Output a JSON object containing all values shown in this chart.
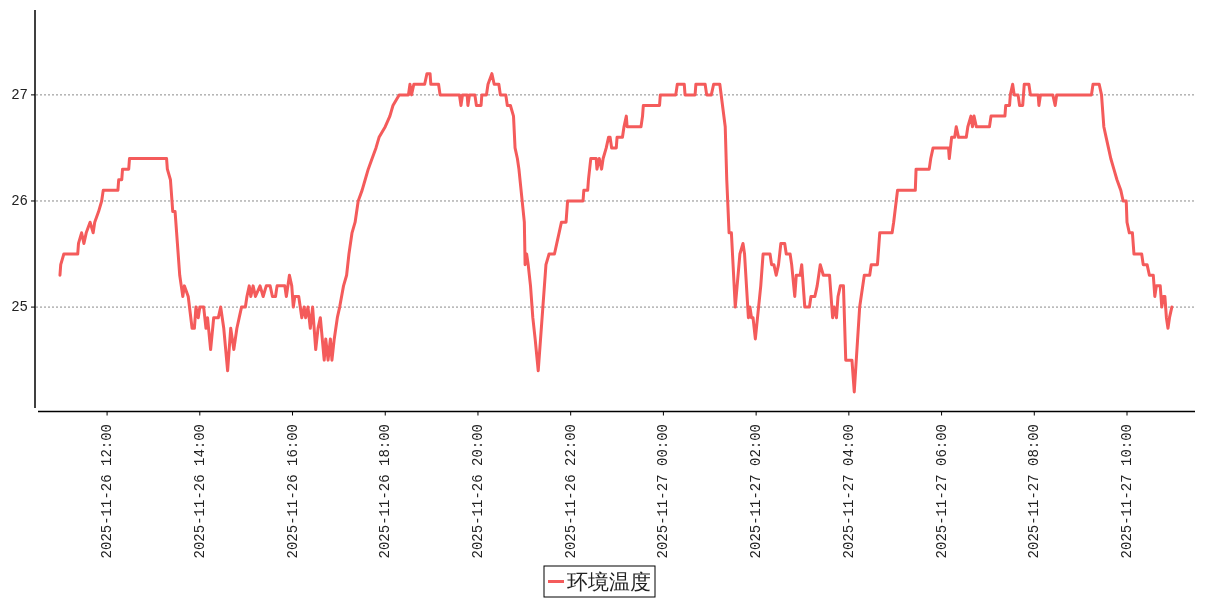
{
  "chart_data": {
    "type": "line",
    "series": [
      {
        "name": "环境温度",
        "color": "#f45b5b",
        "x": [
          "2025-11-26T10:59",
          "2025-11-26T11:00",
          "2025-11-26T11:04",
          "2025-11-26T11:22",
          "2025-11-26T11:23",
          "2025-11-26T11:27",
          "2025-11-26T11:30",
          "2025-11-26T11:33",
          "2025-11-26T11:38",
          "2025-11-26T11:42",
          "2025-11-26T11:44",
          "2025-11-26T11:49",
          "2025-11-26T11:53",
          "2025-11-26T11:55",
          "2025-11-26T12:14",
          "2025-11-26T12:15",
          "2025-11-26T12:19",
          "2025-11-26T12:20",
          "2025-11-26T12:28",
          "2025-11-26T12:29",
          "2025-11-26T13:17",
          "2025-11-26T13:18",
          "2025-11-26T13:22",
          "2025-11-26T13:25",
          "2025-11-26T13:28",
          "2025-11-26T13:31",
          "2025-11-26T13:34",
          "2025-11-26T13:36",
          "2025-11-26T13:38",
          "2025-11-26T13:40",
          "2025-11-26T13:45",
          "2025-11-26T13:50",
          "2025-11-26T13:53",
          "2025-11-26T13:55",
          "2025-11-26T13:58",
          "2025-11-26T14:00",
          "2025-11-26T14:05",
          "2025-11-26T14:08",
          "2025-11-26T14:10",
          "2025-11-26T14:14",
          "2025-11-26T14:18",
          "2025-11-26T14:24",
          "2025-11-26T14:27",
          "2025-11-26T14:31",
          "2025-11-26T14:36",
          "2025-11-26T14:40",
          "2025-11-26T14:44",
          "2025-11-26T14:48",
          "2025-11-26T14:51",
          "2025-11-26T14:54",
          "2025-11-26T14:59",
          "2025-11-26T15:01",
          "2025-11-26T15:04",
          "2025-11-26T15:06",
          "2025-11-26T15:09",
          "2025-11-26T15:12",
          "2025-11-26T15:18",
          "2025-11-26T15:22",
          "2025-11-26T15:26",
          "2025-11-26T15:31",
          "2025-11-26T15:34",
          "2025-11-26T15:38",
          "2025-11-26T15:40",
          "2025-11-26T15:50",
          "2025-11-26T15:52",
          "2025-11-26T15:56",
          "2025-11-26T15:59",
          "2025-11-26T16:01",
          "2025-11-26T16:03",
          "2025-11-26T16:08",
          "2025-11-26T16:10",
          "2025-11-26T16:12",
          "2025-11-26T16:15",
          "2025-11-26T16:17",
          "2025-11-26T16:20",
          "2025-11-26T16:23",
          "2025-11-26T16:26",
          "2025-11-26T16:30",
          "2025-11-26T16:33",
          "2025-11-26T16:36",
          "2025-11-26T16:41",
          "2025-11-26T16:43",
          "2025-11-26T16:46",
          "2025-11-26T16:49",
          "2025-11-26T16:51",
          "2025-11-26T16:54",
          "2025-11-26T16:58",
          "2025-11-26T17:01",
          "2025-11-26T17:06",
          "2025-11-26T17:10",
          "2025-11-26T17:13",
          "2025-11-26T17:17",
          "2025-11-26T17:21",
          "2025-11-26T17:25",
          "2025-11-26T17:30",
          "2025-11-26T17:34",
          "2025-11-26T17:38",
          "2025-11-26T17:43",
          "2025-11-26T17:48",
          "2025-11-26T17:52",
          "2025-11-26T18:00",
          "2025-11-26T18:06",
          "2025-11-26T18:10",
          "2025-11-26T18:18",
          "2025-11-26T18:30",
          "2025-11-26T18:32",
          "2025-11-26T18:34",
          "2025-11-26T18:37",
          "2025-11-26T18:51",
          "2025-11-26T18:54",
          "2025-11-26T18:58",
          "2025-11-26T18:59",
          "2025-11-26T19:09",
          "2025-11-26T19:11",
          "2025-11-26T19:36",
          "2025-11-26T19:38",
          "2025-11-26T19:40",
          "2025-11-26T19:46",
          "2025-11-26T19:47",
          "2025-11-26T19:49",
          "2025-11-26T19:56",
          "2025-11-26T19:58",
          "2025-11-26T20:04",
          "2025-11-26T20:05",
          "2025-11-26T20:11",
          "2025-11-26T20:13",
          "2025-11-26T20:18",
          "2025-11-26T20:21",
          "2025-11-26T20:27",
          "2025-11-26T20:29",
          "2025-11-26T20:36",
          "2025-11-26T20:38",
          "2025-11-26T20:42",
          "2025-11-26T20:46",
          "2025-11-26T20:48",
          "2025-11-26T20:51",
          "2025-11-26T20:53",
          "2025-11-26T21:00",
          "2025-11-26T21:01",
          "2025-11-26T21:03",
          "2025-11-26T21:05",
          "2025-11-26T21:08",
          "2025-11-26T21:11",
          "2025-11-26T21:14",
          "2025-11-26T21:18",
          "2025-11-26T21:24",
          "2025-11-26T21:28",
          "2025-11-26T21:32",
          "2025-11-26T21:39",
          "2025-11-26T21:42",
          "2025-11-26T21:45",
          "2025-11-26T21:48",
          "2025-11-26T21:54",
          "2025-11-26T21:56",
          "2025-11-26T22:16",
          "2025-11-26T22:17",
          "2025-11-26T22:22",
          "2025-11-26T22:23",
          "2025-11-26T22:26",
          "2025-11-26T22:33",
          "2025-11-26T22:34",
          "2025-11-26T22:37",
          "2025-11-26T22:40",
          "2025-11-26T22:42",
          "2025-11-26T22:46",
          "2025-11-26T22:49",
          "2025-11-26T22:51",
          "2025-11-26T22:53",
          "2025-11-26T22:59",
          "2025-11-26T23:00",
          "2025-11-26T23:07",
          "2025-11-26T23:09",
          "2025-11-26T23:12",
          "2025-11-26T23:13",
          "2025-11-26T23:31",
          "2025-11-26T23:33",
          "2025-11-26T23:34",
          "2025-11-26T23:55",
          "2025-11-26T23:56",
          "2025-11-27T00:16",
          "2025-11-27T00:18",
          "2025-11-27T00:27",
          "2025-11-27T00:28",
          "2025-11-27T00:41",
          "2025-11-27T00:42",
          "2025-11-27T00:54",
          "2025-11-27T00:56",
          "2025-11-27T01:02",
          "2025-11-27T01:05",
          "2025-11-27T01:13",
          "2025-11-27T01:20",
          "2025-11-27T01:22",
          "2025-11-27T01:25",
          "2025-11-27T01:28",
          "2025-11-27T01:33",
          "2025-11-27T01:39",
          "2025-11-27T01:43",
          "2025-11-27T01:45",
          "2025-11-27T01:50",
          "2025-11-27T01:52",
          "2025-11-27T01:54",
          "2025-11-27T01:56",
          "2025-11-27T01:59",
          "2025-11-27T02:06",
          "2025-11-27T02:09",
          "2025-11-27T02:18",
          "2025-11-27T02:20",
          "2025-11-27T02:23",
          "2025-11-27T02:26",
          "2025-11-27T02:29",
          "2025-11-27T02:32",
          "2025-11-27T02:37",
          "2025-11-27T02:39",
          "2025-11-27T02:44",
          "2025-11-27T02:46",
          "2025-11-27T02:50",
          "2025-11-27T02:52",
          "2025-11-27T02:57",
          "2025-11-27T02:59",
          "2025-11-27T03:03",
          "2025-11-27T03:09",
          "2025-11-27T03:11",
          "2025-11-27T03:16",
          "2025-11-27T03:19",
          "2025-11-27T03:23",
          "2025-11-27T03:27",
          "2025-11-27T03:35",
          "2025-11-27T03:39",
          "2025-11-27T03:41",
          "2025-11-27T03:44",
          "2025-11-27T03:46",
          "2025-11-27T03:49",
          "2025-11-27T03:53",
          "2025-11-27T03:56",
          "2025-11-27T04:04",
          "2025-11-27T04:07",
          "2025-11-27T04:14",
          "2025-11-27T04:20",
          "2025-11-27T04:27",
          "2025-11-27T04:29",
          "2025-11-27T04:37",
          "2025-11-27T04:38",
          "2025-11-27T04:40",
          "2025-11-27T04:56",
          "2025-11-27T04:58",
          "2025-11-27T05:03",
          "2025-11-27T05:26",
          "2025-11-27T05:27",
          "2025-11-27T05:44",
          "2025-11-27T05:46",
          "2025-11-27T05:49",
          "2025-11-27T06:09",
          "2025-11-27T06:10",
          "2025-11-27T06:13",
          "2025-11-27T06:17",
          "2025-11-27T06:19",
          "2025-11-27T06:22",
          "2025-11-27T06:32",
          "2025-11-27T06:34",
          "2025-11-27T06:38",
          "2025-11-27T06:40",
          "2025-11-27T06:42",
          "2025-11-27T06:45",
          "2025-11-27T07:02",
          "2025-11-27T07:04",
          "2025-11-27T07:22",
          "2025-11-27T07:23",
          "2025-11-27T07:28",
          "2025-11-27T07:29",
          "2025-11-27T07:32",
          "2025-11-27T07:34",
          "2025-11-27T07:39",
          "2025-11-27T07:41",
          "2025-11-27T07:45",
          "2025-11-27T07:47",
          "2025-11-27T07:53",
          "2025-11-27T07:55",
          "2025-11-27T08:05",
          "2025-11-27T08:06",
          "2025-11-27T08:08",
          "2025-11-27T08:24",
          "2025-11-27T08:27",
          "2025-11-27T08:29",
          "2025-11-27T09:14",
          "2025-11-27T09:16",
          "2025-11-27T09:24",
          "2025-11-27T09:27",
          "2025-11-27T09:30",
          "2025-11-27T09:33",
          "2025-11-27T09:36",
          "2025-11-27T09:39",
          "2025-11-27T09:43",
          "2025-11-27T09:47",
          "2025-11-27T09:52",
          "2025-11-27T09:55",
          "2025-11-27T09:59",
          "2025-11-27T10:00",
          "2025-11-27T10:03",
          "2025-11-27T10:07",
          "2025-11-27T10:09",
          "2025-11-27T10:19",
          "2025-11-27T10:21",
          "2025-11-27T10:26",
          "2025-11-27T10:29",
          "2025-11-27T10:34",
          "2025-11-27T10:36",
          "2025-11-27T10:38",
          "2025-11-27T10:43",
          "2025-11-27T10:45",
          "2025-11-27T10:47",
          "2025-11-27T10:49",
          "2025-11-27T10:51",
          "2025-11-27T10:53",
          "2025-11-27T10:55",
          "2025-11-27T10:58"
        ],
        "values": [
          25.3,
          25.4,
          25.5,
          25.5,
          25.6,
          25.7,
          25.6,
          25.7,
          25.8,
          25.7,
          25.8,
          25.9,
          26.0,
          26.1,
          26.1,
          26.2,
          26.2,
          26.3,
          26.3,
          26.4,
          26.4,
          26.3,
          26.2,
          25.9,
          25.9,
          25.6,
          25.3,
          25.2,
          25.1,
          25.2,
          25.1,
          24.8,
          24.8,
          25.0,
          24.9,
          25.0,
          25.0,
          24.8,
          24.9,
          24.6,
          24.9,
          24.9,
          25.0,
          24.8,
          24.4,
          24.8,
          24.6,
          24.8,
          24.9,
          25.0,
          25.0,
          25.1,
          25.2,
          25.1,
          25.2,
          25.1,
          25.2,
          25.1,
          25.2,
          25.2,
          25.1,
          25.1,
          25.2,
          25.2,
          25.1,
          25.3,
          25.2,
          25.0,
          25.1,
          25.1,
          25.0,
          24.9,
          25.0,
          24.9,
          25.0,
          24.8,
          25.0,
          24.6,
          24.8,
          24.9,
          24.5,
          24.7,
          24.5,
          24.7,
          24.5,
          24.7,
          24.9,
          25.0,
          25.2,
          25.3,
          25.5,
          25.7,
          25.8,
          26.0,
          26.1,
          26.2,
          26.3,
          26.4,
          26.5,
          26.6,
          26.7,
          26.8,
          26.9,
          27.0,
          27.0,
          27.1,
          27.0,
          27.1,
          27.1,
          27.2,
          27.2,
          27.1,
          27.1,
          27.0,
          27.0,
          26.9,
          27.0,
          27.0,
          26.9,
          27.0,
          27.0,
          26.9,
          26.9,
          27.0,
          27.0,
          27.1,
          27.2,
          27.1,
          27.1,
          27.0,
          27.0,
          26.9,
          26.9,
          26.8,
          26.5,
          26.4,
          26.3,
          25.8,
          25.4,
          25.5,
          25.4,
          25.2,
          24.9,
          24.7,
          24.4,
          25.0,
          25.4,
          25.5,
          25.5,
          25.6,
          25.7,
          25.8,
          25.8,
          26.0,
          26.0,
          26.1,
          26.1,
          26.2,
          26.4,
          26.4,
          26.3,
          26.4,
          26.3,
          26.4,
          26.5,
          26.6,
          26.6,
          26.5,
          26.5,
          26.6,
          26.6,
          26.7,
          26.8,
          26.7,
          26.7,
          26.8,
          26.9,
          26.9,
          27.0,
          27.0,
          27.1,
          27.1,
          27.0,
          27.0,
          27.1,
          27.1,
          27.0,
          27.0,
          27.1,
          27.1,
          26.7,
          26.2,
          25.7,
          25.7,
          25.0,
          25.5,
          25.6,
          25.5,
          24.9,
          25.0,
          24.9,
          24.9,
          24.7,
          25.2,
          25.5,
          25.5,
          25.4,
          25.4,
          25.3,
          25.4,
          25.6,
          25.6,
          25.5,
          25.5,
          25.4,
          25.1,
          25.3,
          25.3,
          25.4,
          25.0,
          25.0,
          25.1,
          25.1,
          25.2,
          25.4,
          25.3,
          25.3,
          24.9,
          25.0,
          24.9,
          25.1,
          25.2,
          25.2,
          24.5,
          24.5,
          24.2,
          25.0,
          25.3,
          25.3,
          25.4,
          25.4,
          25.5,
          25.7,
          25.7,
          25.8,
          26.1,
          26.1,
          26.3,
          26.3,
          26.4,
          26.5,
          26.5,
          26.4,
          26.6,
          26.6,
          26.7,
          26.6,
          26.6,
          26.7,
          26.8,
          26.7,
          26.8,
          26.7,
          26.7,
          26.8,
          26.8,
          26.9,
          26.9,
          27.0,
          27.1,
          27.0,
          27.0,
          26.9,
          26.9,
          27.1,
          27.1,
          27.0,
          27.0,
          26.9,
          27.0,
          27.0,
          26.9,
          27.0,
          27.0,
          27.1,
          27.1,
          27.0,
          26.7,
          26.6,
          26.5,
          26.4,
          26.3,
          26.2,
          26.1,
          26.0,
          26.0,
          25.8,
          25.7,
          25.7,
          25.5,
          25.5,
          25.4,
          25.4,
          25.3,
          25.3,
          25.1,
          25.2,
          25.2,
          25.0,
          25.1,
          25.1,
          24.9,
          24.8,
          24.9,
          25.0
        ]
      }
    ],
    "xlim": [
      "2025-11-26T10:28",
      "2025-11-27T11:28"
    ],
    "xticks": [
      {
        "value": "2025-11-26T12:00",
        "label": "2025-11-26 12:00"
      },
      {
        "value": "2025-11-26T14:00",
        "label": "2025-11-26 14:00"
      },
      {
        "value": "2025-11-26T16:00",
        "label": "2025-11-26 16:00"
      },
      {
        "value": "2025-11-26T18:00",
        "label": "2025-11-26 18:00"
      },
      {
        "value": "2025-11-26T20:00",
        "label": "2025-11-26 20:00"
      },
      {
        "value": "2025-11-26T22:00",
        "label": "2025-11-26 22:00"
      },
      {
        "value": "2025-11-27T00:00",
        "label": "2025-11-27 00:00"
      },
      {
        "value": "2025-11-27T02:00",
        "label": "2025-11-27 02:00"
      },
      {
        "value": "2025-11-27T04:00",
        "label": "2025-11-27 04:00"
      },
      {
        "value": "2025-11-27T06:00",
        "label": "2025-11-27 06:00"
      },
      {
        "value": "2025-11-27T08:00",
        "label": "2025-11-27 08:00"
      },
      {
        "value": "2025-11-27T10:00",
        "label": "2025-11-27 10:00"
      }
    ],
    "ylim": [
      24.03,
      27.8
    ],
    "yticks": [
      25,
      26,
      27
    ],
    "grid": "y",
    "legend": "bottom"
  }
}
